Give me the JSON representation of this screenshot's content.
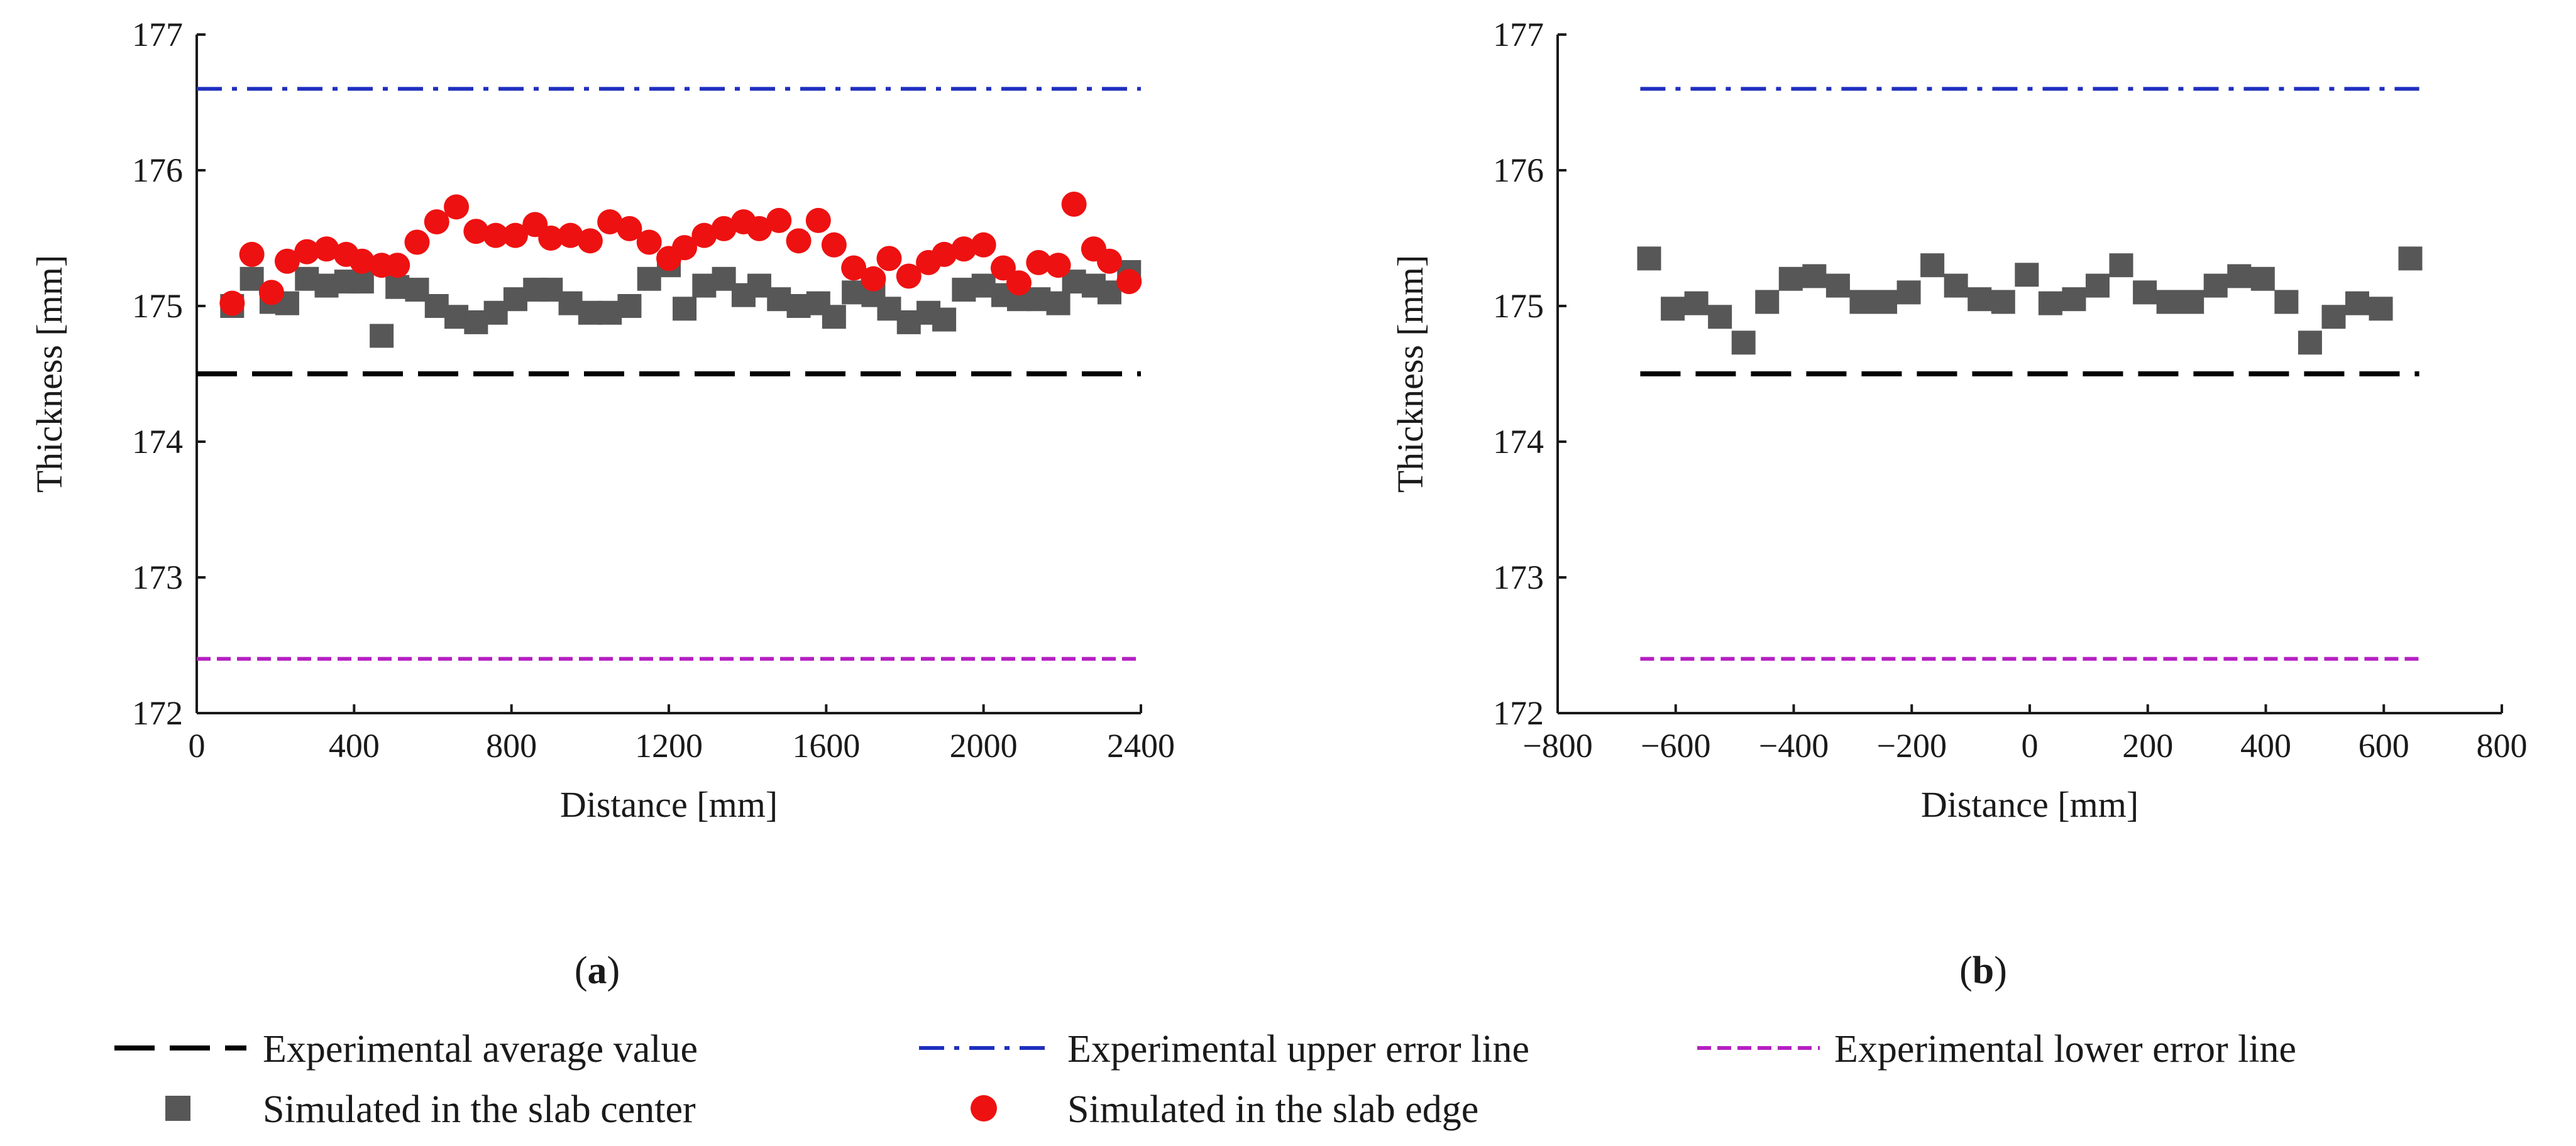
{
  "legend": {
    "avg": "Experimental average value",
    "upper": "Experimental upper error line",
    "lower": "Experimental lower error line",
    "center": "Simulated in the slab center",
    "edge": "Simulated in the slab edge"
  },
  "colors": {
    "average": "#000000",
    "upper": "#1f2fbf",
    "lower": "#b51fc2",
    "center": "#575757",
    "edge": "#ee1111"
  },
  "chart_data": [
    {
      "type": "scatter",
      "panel_label": "(a)",
      "panel_letter": "a",
      "xlabel": "Distance [mm]",
      "ylabel": "Thickness [mm]",
      "xlim": [
        0,
        2400
      ],
      "ylim": [
        172,
        177
      ],
      "xticks": [
        0,
        400,
        800,
        1200,
        1600,
        2000,
        2400
      ],
      "yticks": [
        172,
        173,
        174,
        175,
        176,
        177
      ],
      "reference_lines": [
        {
          "key": "avg",
          "y": 174.5,
          "x_range": [
            0,
            2400
          ],
          "style": "long-dash"
        },
        {
          "key": "upper",
          "y": 176.6,
          "x_range": [
            0,
            2400
          ],
          "style": "dash-dot"
        },
        {
          "key": "lower",
          "y": 172.4,
          "x_range": [
            0,
            2400
          ],
          "style": "short-dash"
        }
      ],
      "series": [
        {
          "key": "center",
          "marker": "square",
          "points": [
            [
              90,
              175.0
            ],
            [
              140,
              175.2
            ],
            [
              190,
              175.03
            ],
            [
              230,
              175.02
            ],
            [
              280,
              175.2
            ],
            [
              330,
              175.15
            ],
            [
              380,
              175.18
            ],
            [
              420,
              175.18
            ],
            [
              470,
              174.78
            ],
            [
              510,
              175.14
            ],
            [
              560,
              175.12
            ],
            [
              610,
              175.0
            ],
            [
              660,
              174.92
            ],
            [
              710,
              174.88
            ],
            [
              760,
              174.95
            ],
            [
              810,
              175.05
            ],
            [
              860,
              175.12
            ],
            [
              900,
              175.12
            ],
            [
              950,
              175.02
            ],
            [
              1000,
              174.95
            ],
            [
              1050,
              174.95
            ],
            [
              1100,
              175.0
            ],
            [
              1150,
              175.2
            ],
            [
              1200,
              175.3
            ],
            [
              1240,
              174.98
            ],
            [
              1290,
              175.15
            ],
            [
              1340,
              175.2
            ],
            [
              1390,
              175.08
            ],
            [
              1430,
              175.15
            ],
            [
              1480,
              175.05
            ],
            [
              1530,
              175.0
            ],
            [
              1580,
              175.02
            ],
            [
              1620,
              174.92
            ],
            [
              1670,
              175.1
            ],
            [
              1720,
              175.08
            ],
            [
              1760,
              174.98
            ],
            [
              1810,
              174.88
            ],
            [
              1860,
              174.95
            ],
            [
              1900,
              174.9
            ],
            [
              1950,
              175.12
            ],
            [
              2000,
              175.15
            ],
            [
              2050,
              175.08
            ],
            [
              2090,
              175.05
            ],
            [
              2140,
              175.05
            ],
            [
              2190,
              175.02
            ],
            [
              2230,
              175.18
            ],
            [
              2280,
              175.15
            ],
            [
              2320,
              175.1
            ],
            [
              2370,
              175.25
            ]
          ]
        },
        {
          "key": "edge",
          "marker": "circle",
          "points": [
            [
              90,
              175.02
            ],
            [
              140,
              175.38
            ],
            [
              190,
              175.1
            ],
            [
              230,
              175.33
            ],
            [
              280,
              175.4
            ],
            [
              330,
              175.42
            ],
            [
              380,
              175.38
            ],
            [
              420,
              175.33
            ],
            [
              470,
              175.3
            ],
            [
              510,
              175.3
            ],
            [
              560,
              175.47
            ],
            [
              610,
              175.62
            ],
            [
              660,
              175.73
            ],
            [
              710,
              175.55
            ],
            [
              760,
              175.52
            ],
            [
              810,
              175.52
            ],
            [
              860,
              175.6
            ],
            [
              900,
              175.5
            ],
            [
              950,
              175.52
            ],
            [
              1000,
              175.48
            ],
            [
              1050,
              175.62
            ],
            [
              1100,
              175.57
            ],
            [
              1150,
              175.47
            ],
            [
              1200,
              175.35
            ],
            [
              1240,
              175.43
            ],
            [
              1290,
              175.52
            ],
            [
              1340,
              175.57
            ],
            [
              1390,
              175.62
            ],
            [
              1430,
              175.57
            ],
            [
              1480,
              175.63
            ],
            [
              1530,
              175.48
            ],
            [
              1580,
              175.63
            ],
            [
              1620,
              175.45
            ],
            [
              1670,
              175.28
            ],
            [
              1720,
              175.2
            ],
            [
              1760,
              175.35
            ],
            [
              1810,
              175.22
            ],
            [
              1860,
              175.32
            ],
            [
              1900,
              175.38
            ],
            [
              1950,
              175.42
            ],
            [
              2000,
              175.45
            ],
            [
              2050,
              175.28
            ],
            [
              2090,
              175.17
            ],
            [
              2140,
              175.32
            ],
            [
              2190,
              175.3
            ],
            [
              2230,
              175.75
            ],
            [
              2280,
              175.42
            ],
            [
              2320,
              175.33
            ],
            [
              2370,
              175.18
            ]
          ]
        }
      ]
    },
    {
      "type": "scatter",
      "panel_label": "(b)",
      "panel_letter": "b",
      "xlabel": "Distance [mm]",
      "ylabel": "Thickness [mm]",
      "xlim": [
        -800,
        800
      ],
      "ylim": [
        172,
        177
      ],
      "xticks": [
        -800,
        -600,
        -400,
        -200,
        0,
        200,
        400,
        600,
        800
      ],
      "xtick_labels": [
        "−800",
        "−600",
        "−400",
        "−200",
        "0",
        "200",
        "400",
        "600",
        "800"
      ],
      "yticks": [
        172,
        173,
        174,
        175,
        176,
        177
      ],
      "reference_lines": [
        {
          "key": "avg",
          "y": 174.5,
          "x_range": [
            -660,
            660
          ],
          "style": "long-dash"
        },
        {
          "key": "upper",
          "y": 176.6,
          "x_range": [
            -660,
            660
          ],
          "style": "dash-dot"
        },
        {
          "key": "lower",
          "y": 172.4,
          "x_range": [
            -660,
            660
          ],
          "style": "short-dash"
        }
      ],
      "series": [
        {
          "key": "center",
          "marker": "square",
          "points": [
            [
              -645,
              175.35
            ],
            [
              -605,
              174.98
            ],
            [
              -565,
              175.02
            ],
            [
              -525,
              174.92
            ],
            [
              -485,
              174.73
            ],
            [
              -445,
              175.03
            ],
            [
              -405,
              175.2
            ],
            [
              -365,
              175.22
            ],
            [
              -325,
              175.15
            ],
            [
              -285,
              175.03
            ],
            [
              -245,
              175.03
            ],
            [
              -205,
              175.1
            ],
            [
              -165,
              175.3
            ],
            [
              -125,
              175.15
            ],
            [
              -85,
              175.05
            ],
            [
              -45,
              175.03
            ],
            [
              -5,
              175.23
            ],
            [
              35,
              175.02
            ],
            [
              75,
              175.05
            ],
            [
              115,
              175.15
            ],
            [
              155,
              175.3
            ],
            [
              195,
              175.1
            ],
            [
              235,
              175.03
            ],
            [
              275,
              175.03
            ],
            [
              315,
              175.15
            ],
            [
              355,
              175.22
            ],
            [
              395,
              175.2
            ],
            [
              435,
              175.03
            ],
            [
              475,
              174.73
            ],
            [
              515,
              174.92
            ],
            [
              555,
              175.02
            ],
            [
              595,
              174.98
            ],
            [
              645,
              175.35
            ]
          ]
        }
      ]
    }
  ]
}
